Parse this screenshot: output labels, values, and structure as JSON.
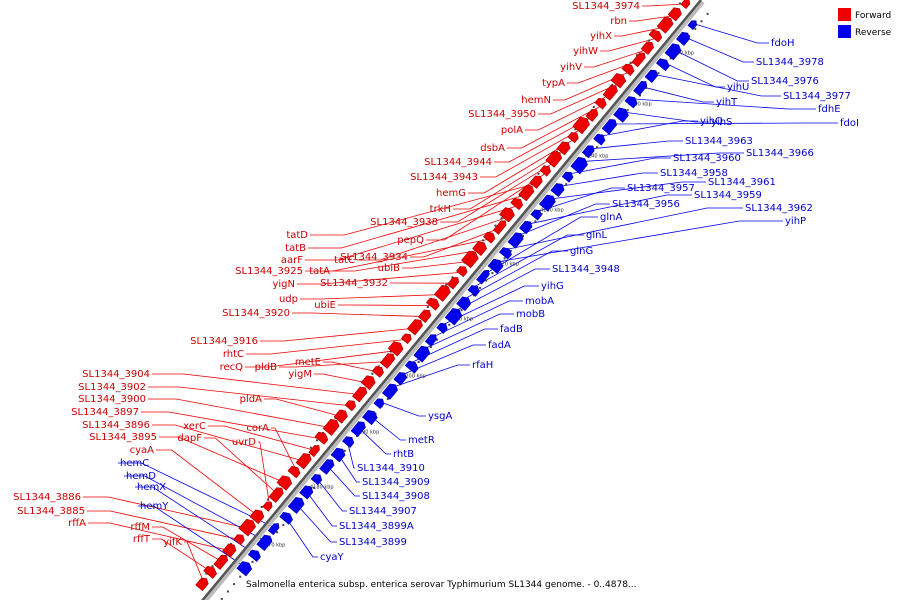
{
  "colors": {
    "forward": "#ee0000",
    "reverse": "#0000ee",
    "forward_text": "#cc0000",
    "reverse_text": "#0000cc"
  },
  "legend": [
    {
      "label": "Forward",
      "strand": "forward"
    },
    {
      "label": "Reverse",
      "strand": "reverse"
    }
  ],
  "caption": "Salmonella enterica subsp. enterica serovar Typhimurium SL1344 genome. - 0..4878...",
  "ticks": [
    "4170 kbp",
    "4180 kbp",
    "4190 kbp",
    "4200 kbp",
    "4210 kbp",
    "4220 kbp",
    "4230 kbp",
    "4240 kbp",
    "4250 kbp",
    "4260 kbp"
  ],
  "forward_genes": [
    {
      "name": "SL1344_3974"
    },
    {
      "name": "rbn"
    },
    {
      "name": "yihX"
    },
    {
      "name": "yihW"
    },
    {
      "name": "yihV"
    },
    {
      "name": "typA"
    },
    {
      "name": "hemN"
    },
    {
      "name": "SL1344_3950"
    },
    {
      "name": "polA"
    },
    {
      "name": "dsbA"
    },
    {
      "name": "SL1344_3944"
    },
    {
      "name": "SL1344_3943"
    },
    {
      "name": "hemG"
    },
    {
      "name": "trkH"
    },
    {
      "name": "SL1344_3938"
    },
    {
      "name": "pepQ"
    },
    {
      "name": "tatD"
    },
    {
      "name": "tatB"
    },
    {
      "name": "aarF"
    },
    {
      "name": "tatC"
    },
    {
      "name": "SL1344_3934"
    },
    {
      "name": "SL1344_3925"
    },
    {
      "name": "tatA"
    },
    {
      "name": "ubiB"
    },
    {
      "name": "yigN"
    },
    {
      "name": "SL1344_3932"
    },
    {
      "name": "udp"
    },
    {
      "name": "ubiE"
    },
    {
      "name": "SL1344_3920"
    },
    {
      "name": "SL1344_3916"
    },
    {
      "name": "rhtC"
    },
    {
      "name": "recQ"
    },
    {
      "name": "pldB"
    },
    {
      "name": "metE"
    },
    {
      "name": "yigM"
    },
    {
      "name": "SL1344_3904"
    },
    {
      "name": "SL1344_3902"
    },
    {
      "name": "pldA"
    },
    {
      "name": "SL1344_3900"
    },
    {
      "name": "SL1344_3897"
    },
    {
      "name": "xerC"
    },
    {
      "name": "SL1344_3896"
    },
    {
      "name": "corA"
    },
    {
      "name": "SL1344_3895"
    },
    {
      "name": "dapF"
    },
    {
      "name": "uvrD"
    },
    {
      "name": "cyaA"
    },
    {
      "name": "SL1344_3886"
    },
    {
      "name": "SL1344_3885"
    },
    {
      "name": "rffA"
    },
    {
      "name": "rffM"
    },
    {
      "name": "rffT"
    },
    {
      "name": "yifK"
    }
  ],
  "reverse_genes": [
    {
      "name": "fdoH"
    },
    {
      "name": "SL1344_3978"
    },
    {
      "name": "SL1344_3976"
    },
    {
      "name": "yihU"
    },
    {
      "name": "SL1344_3977"
    },
    {
      "name": "yihT"
    },
    {
      "name": "fdhE"
    },
    {
      "name": "yihS"
    },
    {
      "name": "fdoI"
    },
    {
      "name": "yihQ"
    },
    {
      "name": "SL1344_3963"
    },
    {
      "name": "SL1344_3966"
    },
    {
      "name": "SL1344_3960"
    },
    {
      "name": "SL1344_3958"
    },
    {
      "name": "SL1344_3961"
    },
    {
      "name": "SL1344_3957"
    },
    {
      "name": "SL1344_3959"
    },
    {
      "name": "SL1344_3956"
    },
    {
      "name": "SL1344_3962"
    },
    {
      "name": "yihP"
    },
    {
      "name": "glnA"
    },
    {
      "name": "glnL"
    },
    {
      "name": "glnG"
    },
    {
      "name": "SL1344_3948"
    },
    {
      "name": "yihG"
    },
    {
      "name": "mobA"
    },
    {
      "name": "mobB"
    },
    {
      "name": "fadB"
    },
    {
      "name": "fadA"
    },
    {
      "name": "rfaH"
    },
    {
      "name": "ysgA"
    },
    {
      "name": "metR"
    },
    {
      "name": "rhtB"
    },
    {
      "name": "SL1344_3910"
    },
    {
      "name": "SL1344_3909"
    },
    {
      "name": "SL1344_3908"
    },
    {
      "name": "SL1344_3907"
    },
    {
      "name": "SL1344_3899A"
    },
    {
      "name": "SL1344_3899"
    },
    {
      "name": "cyaY"
    },
    {
      "name": "hemC"
    },
    {
      "name": "hemD"
    },
    {
      "name": "hemX"
    },
    {
      "name": "hemY"
    }
  ]
}
